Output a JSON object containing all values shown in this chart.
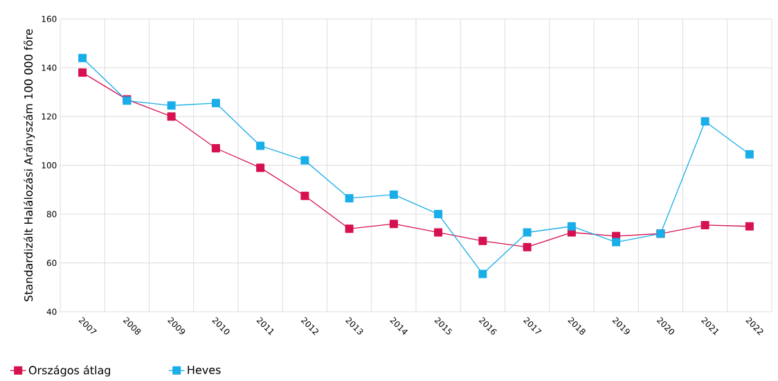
{
  "chart_data": {
    "type": "line",
    "ylabel": "Standardizált Halálozási Arányszám 100 000 főre",
    "categories": [
      "2007",
      "2008",
      "2009",
      "2010",
      "2011",
      "2012",
      "2013",
      "2014",
      "2015",
      "2016",
      "2017",
      "2018",
      "2019",
      "2020",
      "2021",
      "2022"
    ],
    "series": [
      {
        "name": "Országos átlag",
        "color": "#d6114f",
        "values": [
          138,
          127,
          120,
          107,
          99,
          87.5,
          74,
          76,
          72.5,
          69,
          66.5,
          72.5,
          71,
          72,
          75.5,
          75
        ]
      },
      {
        "name": "Heves",
        "color": "#1aaee8",
        "values": [
          144,
          126.5,
          124.5,
          125.5,
          108,
          102,
          86.5,
          88,
          80,
          55.5,
          72.5,
          75,
          68.5,
          72,
          118,
          104.5
        ]
      }
    ],
    "ylim": [
      40,
      160
    ],
    "yticks": [
      40,
      60,
      80,
      100,
      120,
      140,
      160
    ],
    "grid": true,
    "legend": "bottom left",
    "marker": "square",
    "line_style": "solid"
  }
}
